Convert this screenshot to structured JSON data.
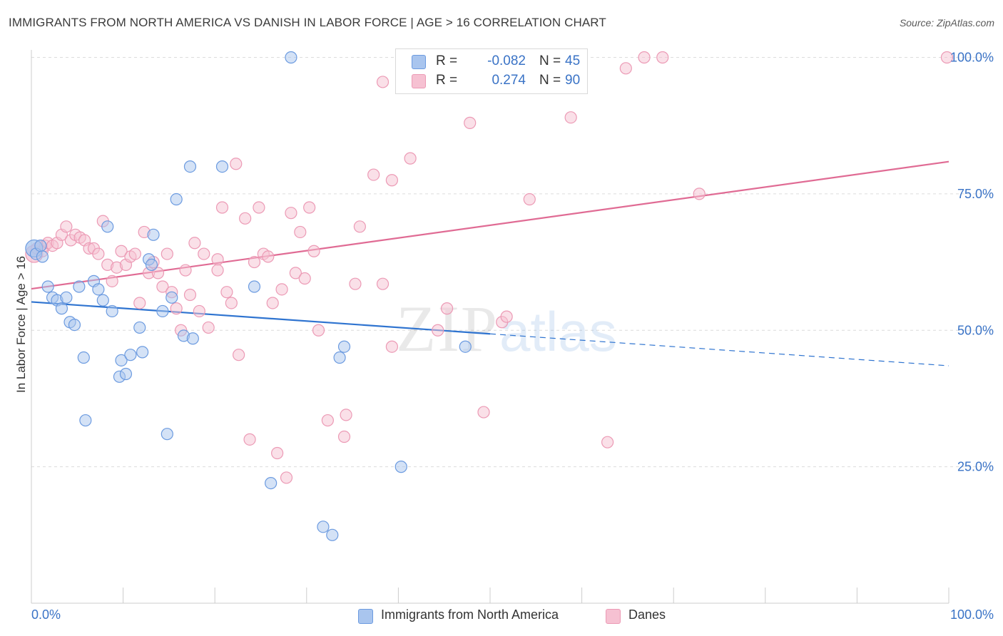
{
  "title": "IMMIGRANTS FROM NORTH AMERICA VS DANISH IN LABOR FORCE | AGE > 16 CORRELATION CHART",
  "source": "Source: ZipAtlas.com",
  "watermark": {
    "part1": "ZIP",
    "part2": "atlas"
  },
  "legend": {
    "rows": [
      {
        "r_label": "R =",
        "r_value": "-0.082",
        "n_label": "N =",
        "n_value": "45"
      },
      {
        "r_label": "R =",
        "r_value": "0.274",
        "n_label": "N =",
        "n_value": "90"
      }
    ]
  },
  "bottom_legend": {
    "series1": "Immigrants from North America",
    "series2": "Danes"
  },
  "colors": {
    "series1_fill": "#a9c5ee",
    "series1_stroke": "#6c9be0",
    "series1_line": "#2f74d0",
    "series2_fill": "#f6c1d2",
    "series2_stroke": "#ec9ab5",
    "series2_line": "#e06b94",
    "axis_text": "#3a73c6",
    "grid": "#dcdcdc"
  },
  "chart_data": {
    "type": "scatter",
    "title": "IMMIGRANTS FROM NORTH AMERICA VS DANISH IN LABOR FORCE | AGE > 16 CORRELATION CHART",
    "xlabel": "",
    "ylabel": "In Labor Force | Age > 16",
    "xlim": [
      0,
      100
    ],
    "ylim": [
      0,
      102
    ],
    "x_tick_labels": [
      "0.0%",
      "100.0%"
    ],
    "y_ticks": [
      25,
      50,
      75,
      100
    ],
    "y_tick_labels": [
      "25.0%",
      "50.0%",
      "75.0%",
      "100.0%"
    ],
    "grid": true,
    "legend_placement": "top-center",
    "series": [
      {
        "name": "Immigrants from North America",
        "r": -0.082,
        "n": 45,
        "trend": {
          "y_at_x0": 55.2,
          "y_at_x100": 43.5,
          "solid_until_x": 50
        },
        "points": [
          [
            0.3,
            65.0
          ],
          [
            0.5,
            64.0
          ],
          [
            1.0,
            65.5
          ],
          [
            1.2,
            63.5
          ],
          [
            1.8,
            58.0
          ],
          [
            2.3,
            56.0
          ],
          [
            2.8,
            55.5
          ],
          [
            3.3,
            54.0
          ],
          [
            3.8,
            56.0
          ],
          [
            4.2,
            51.5
          ],
          [
            4.7,
            51.0
          ],
          [
            5.2,
            58.0
          ],
          [
            5.7,
            45.0
          ],
          [
            5.9,
            33.5
          ],
          [
            6.8,
            59.0
          ],
          [
            7.3,
            57.5
          ],
          [
            7.8,
            55.5
          ],
          [
            8.3,
            69.0
          ],
          [
            8.8,
            53.5
          ],
          [
            9.6,
            41.5
          ],
          [
            9.8,
            44.5
          ],
          [
            10.3,
            42.0
          ],
          [
            10.8,
            45.5
          ],
          [
            11.8,
            50.5
          ],
          [
            12.1,
            46.0
          ],
          [
            12.8,
            63.0
          ],
          [
            13.1,
            62.0
          ],
          [
            13.3,
            67.5
          ],
          [
            14.3,
            53.5
          ],
          [
            14.8,
            31.0
          ],
          [
            15.3,
            56.0
          ],
          [
            15.8,
            74.0
          ],
          [
            16.6,
            49.0
          ],
          [
            17.3,
            80.0
          ],
          [
            17.6,
            48.5
          ],
          [
            20.8,
            80.0
          ],
          [
            24.3,
            58.0
          ],
          [
            26.1,
            22.0
          ],
          [
            28.3,
            100.0
          ],
          [
            31.8,
            14.0
          ],
          [
            32.8,
            12.5
          ],
          [
            33.6,
            45.0
          ],
          [
            34.1,
            47.0
          ],
          [
            40.3,
            25.0
          ],
          [
            47.3,
            47.0
          ]
        ]
      },
      {
        "name": "Danes",
        "r": 0.274,
        "n": 90,
        "trend": {
          "y_at_x0": 57.6,
          "y_at_x100": 80.9
        },
        "points": [
          [
            0.3,
            64.0
          ],
          [
            0.6,
            65.0
          ],
          [
            1.0,
            65.5
          ],
          [
            1.2,
            64.5
          ],
          [
            1.5,
            65.5
          ],
          [
            1.8,
            66.0
          ],
          [
            2.3,
            65.5
          ],
          [
            2.8,
            66.0
          ],
          [
            3.3,
            67.5
          ],
          [
            3.8,
            69.0
          ],
          [
            4.3,
            66.5
          ],
          [
            4.8,
            67.5
          ],
          [
            5.3,
            67.0
          ],
          [
            5.8,
            66.5
          ],
          [
            6.3,
            65.0
          ],
          [
            6.8,
            65.0
          ],
          [
            7.3,
            64.0
          ],
          [
            7.8,
            70.0
          ],
          [
            8.3,
            62.0
          ],
          [
            8.8,
            59.0
          ],
          [
            9.3,
            61.5
          ],
          [
            9.8,
            64.5
          ],
          [
            10.3,
            62.0
          ],
          [
            10.8,
            63.5
          ],
          [
            11.3,
            64.0
          ],
          [
            11.8,
            55.0
          ],
          [
            12.3,
            68.0
          ],
          [
            12.8,
            60.5
          ],
          [
            13.3,
            62.5
          ],
          [
            13.8,
            60.5
          ],
          [
            14.3,
            58.0
          ],
          [
            14.8,
            64.0
          ],
          [
            15.3,
            57.0
          ],
          [
            15.8,
            54.0
          ],
          [
            16.3,
            50.0
          ],
          [
            16.8,
            61.0
          ],
          [
            17.3,
            56.5
          ],
          [
            17.8,
            66.0
          ],
          [
            18.3,
            53.5
          ],
          [
            18.8,
            64.0
          ],
          [
            19.3,
            50.5
          ],
          [
            20.3,
            63.0
          ],
          [
            20.3,
            61.0
          ],
          [
            20.8,
            72.5
          ],
          [
            21.3,
            57.0
          ],
          [
            21.8,
            55.0
          ],
          [
            22.3,
            80.5
          ],
          [
            22.6,
            45.5
          ],
          [
            23.3,
            70.5
          ],
          [
            23.8,
            30.0
          ],
          [
            24.3,
            62.5
          ],
          [
            24.8,
            72.5
          ],
          [
            25.3,
            64.0
          ],
          [
            25.8,
            63.5
          ],
          [
            26.3,
            55.0
          ],
          [
            26.8,
            27.5
          ],
          [
            27.3,
            57.5
          ],
          [
            27.8,
            23.0
          ],
          [
            28.3,
            71.5
          ],
          [
            28.8,
            60.5
          ],
          [
            29.3,
            68.0
          ],
          [
            29.8,
            59.5
          ],
          [
            30.3,
            72.5
          ],
          [
            30.8,
            64.5
          ],
          [
            31.3,
            50.0
          ],
          [
            32.3,
            33.5
          ],
          [
            34.3,
            34.5
          ],
          [
            34.1,
            30.5
          ],
          [
            35.3,
            58.5
          ],
          [
            35.8,
            69.0
          ],
          [
            37.3,
            78.5
          ],
          [
            38.3,
            58.5
          ],
          [
            38.3,
            95.5
          ],
          [
            39.3,
            77.5
          ],
          [
            39.3,
            47.0
          ],
          [
            41.3,
            81.5
          ],
          [
            44.3,
            50.0
          ],
          [
            45.3,
            54.0
          ],
          [
            47.8,
            88.0
          ],
          [
            49.3,
            35.0
          ],
          [
            51.3,
            51.5
          ],
          [
            51.8,
            52.5
          ],
          [
            54.3,
            74.0
          ],
          [
            58.8,
            89.0
          ],
          [
            62.8,
            29.5
          ],
          [
            64.8,
            98.0
          ],
          [
            66.8,
            100.0
          ],
          [
            68.8,
            100.0
          ],
          [
            72.8,
            75.0
          ],
          [
            99.8,
            100.0
          ]
        ]
      }
    ]
  }
}
